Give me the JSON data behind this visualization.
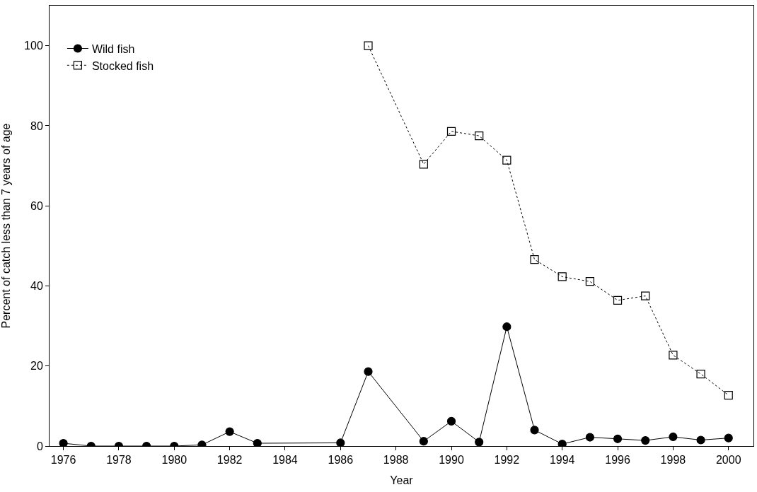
{
  "chart_data": {
    "type": "line",
    "xlabel": "Year",
    "ylabel": "Percent of catch less than 7 years of age",
    "xlim": [
      1975.5,
      2000.9
    ],
    "ylim": [
      0,
      110
    ],
    "xticks": [
      1976,
      1978,
      1980,
      1982,
      1984,
      1986,
      1988,
      1990,
      1992,
      1994,
      1996,
      1998,
      2000
    ],
    "yticks": [
      0,
      20,
      40,
      60,
      80,
      100
    ],
    "legend": "top left",
    "series": [
      {
        "name": "Wild fish",
        "color": "#000000",
        "marker": "circle",
        "line_style": "solid",
        "x": [
          1976,
          1977,
          1978,
          1979,
          1980,
          1981,
          1982,
          1983,
          1986,
          1987,
          1989,
          1990,
          1991,
          1992,
          1993,
          1994,
          1995,
          1996,
          1997,
          1998,
          1999,
          2000
        ],
        "values": [
          0.7,
          0,
          0,
          0,
          0,
          0.3,
          3.6,
          0.7,
          0.8,
          18.6,
          1.2,
          6.2,
          1.0,
          29.8,
          4.0,
          0.5,
          2.2,
          1.8,
          1.4,
          2.3,
          1.5,
          2.0
        ]
      },
      {
        "name": "Stocked fish",
        "color": "#000000",
        "marker": "square",
        "line_style": "dotted",
        "x": [
          1987,
          1989,
          1990,
          1991,
          1992,
          1993,
          1994,
          1995,
          1996,
          1997,
          1998,
          1999,
          2000
        ],
        "values": [
          100,
          70.4,
          78.6,
          77.5,
          71.4,
          46.6,
          42.3,
          41.1,
          36.4,
          37.5,
          22.7,
          18.0,
          12.7
        ]
      }
    ]
  }
}
